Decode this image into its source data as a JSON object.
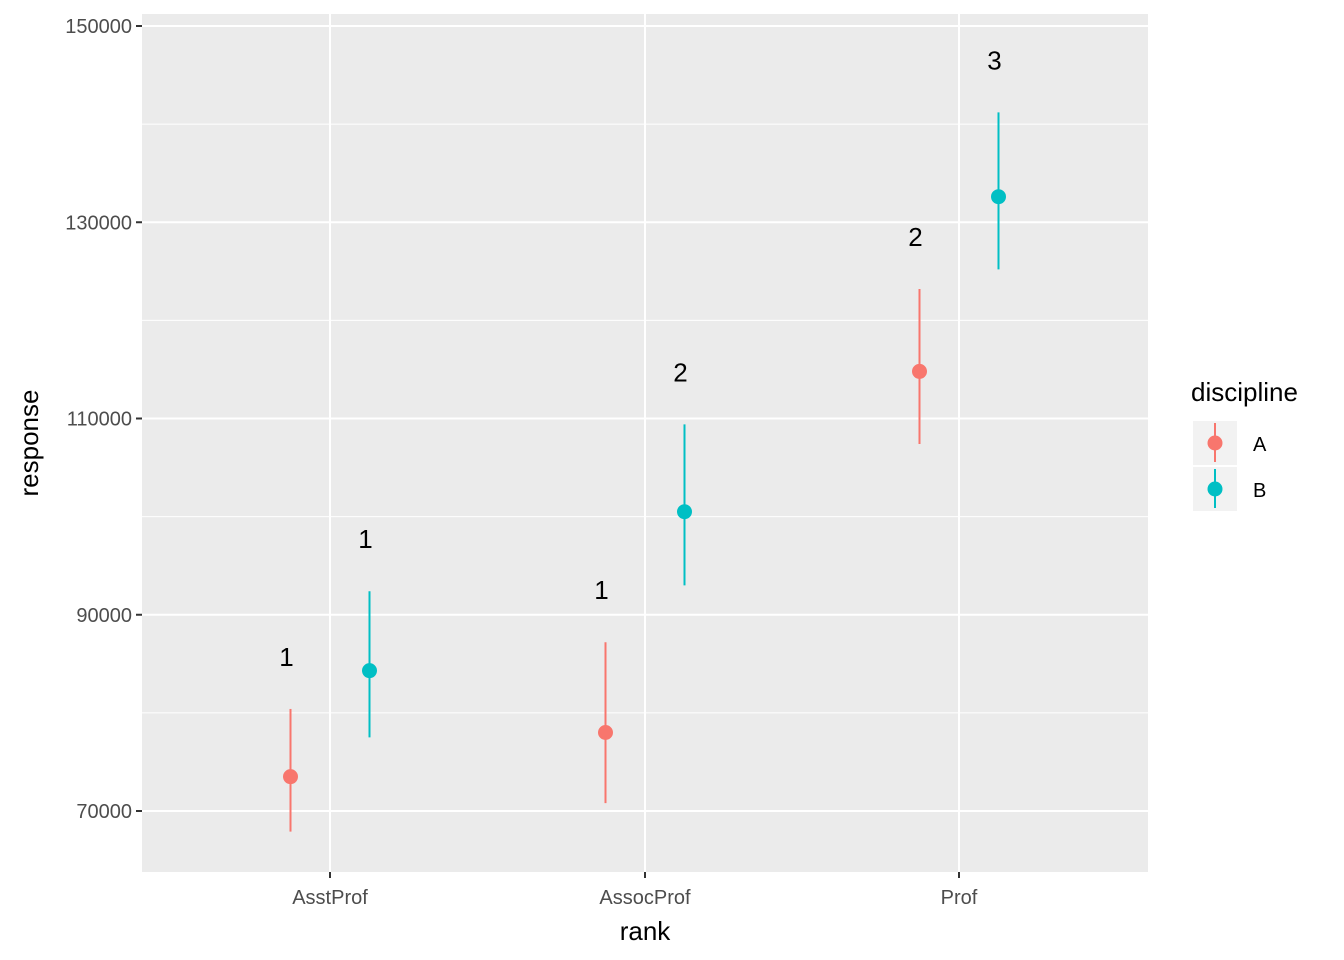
{
  "chart_data": {
    "type": "scatter",
    "subtype": "point-range",
    "title": "",
    "xlabel": "rank",
    "ylabel": "response",
    "categories": [
      "AsstProf",
      "AssocProf",
      "Prof"
    ],
    "ylim": [
      64000,
      151000
    ],
    "yticks": [
      70000,
      90000,
      110000,
      130000,
      150000
    ],
    "ytick_labels": [
      "70000",
      "90000",
      "110000",
      "130000",
      "150000"
    ],
    "grid": true,
    "legend": {
      "title": "discipline",
      "placement": "right"
    },
    "series": [
      {
        "name": "A",
        "color": "#F8766D",
        "values": [
          73500,
          78000,
          114800
        ],
        "lower": [
          67900,
          70800,
          107400
        ],
        "upper": [
          80400,
          87200,
          123200
        ],
        "labels": [
          "1",
          "1",
          "2"
        ]
      },
      {
        "name": "B",
        "color": "#00BFC4",
        "values": [
          84300,
          100500,
          132600
        ],
        "lower": [
          77500,
          93000,
          125200
        ],
        "upper": [
          92400,
          109400,
          141200
        ],
        "labels": [
          "1",
          "2",
          "3"
        ]
      }
    ]
  }
}
